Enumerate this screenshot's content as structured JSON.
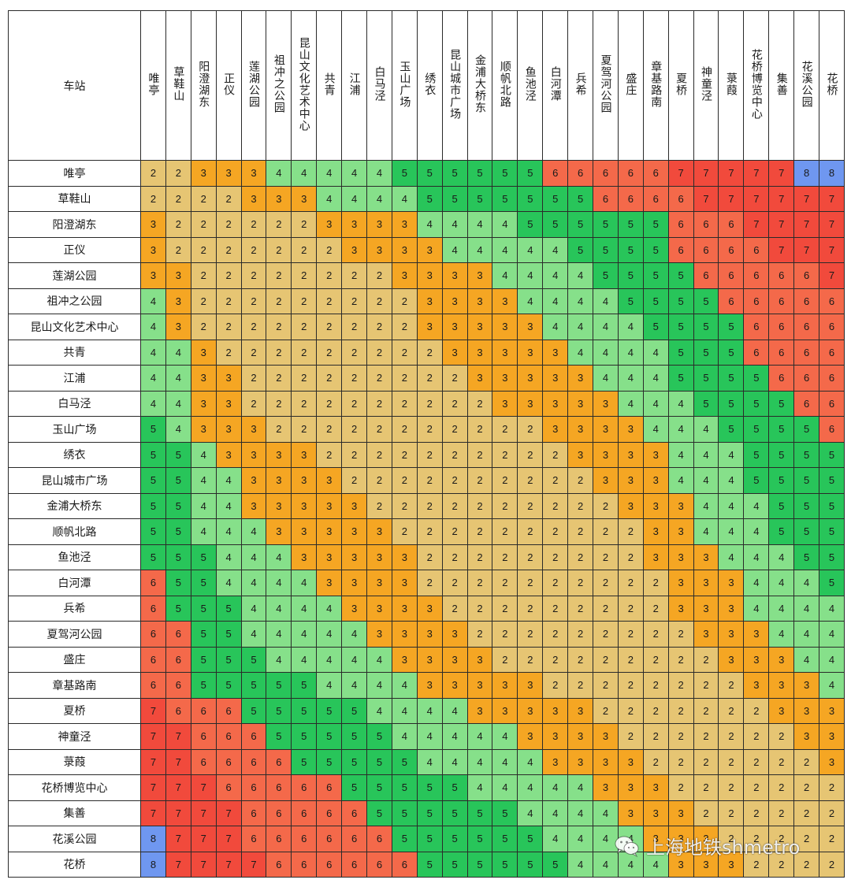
{
  "corner_label": "车站",
  "stations": [
    "唯亭",
    "草鞋山",
    "阳澄湖东",
    "正仪",
    "莲湖公园",
    "祖冲之公园",
    "昆山文化艺术中心",
    "共青",
    "江浦",
    "白马泾",
    "玉山广场",
    "绣衣",
    "昆山城市广场",
    "金浦大桥东",
    "顺帆北路",
    "鱼池泾",
    "白河潭",
    "兵希",
    "夏驾河公园",
    "盛庄",
    "章基路南",
    "夏桥",
    "神童泾",
    "菉葭",
    "花桥博览中心",
    "集善",
    "花溪公园",
    "花桥"
  ],
  "colors": {
    "2": "#e6c573",
    "3": "#f5a623",
    "4": "#86e08a",
    "5": "#28c55a",
    "6": "#f4694a",
    "7": "#f14a3c",
    "8": "#6f97f0"
  },
  "fares": [
    [
      2,
      2,
      3,
      3,
      3,
      4,
      4,
      4,
      4,
      4,
      5,
      5,
      5,
      5,
      5,
      5,
      6,
      6,
      6,
      6,
      6,
      7,
      7,
      7,
      7,
      7,
      8,
      8
    ],
    [
      2,
      2,
      2,
      2,
      3,
      3,
      3,
      4,
      4,
      4,
      4,
      5,
      5,
      5,
      5,
      5,
      5,
      5,
      6,
      6,
      6,
      6,
      7,
      7,
      7,
      7,
      7,
      7
    ],
    [
      3,
      2,
      2,
      2,
      2,
      2,
      2,
      3,
      3,
      3,
      3,
      4,
      4,
      4,
      4,
      5,
      5,
      5,
      5,
      5,
      5,
      6,
      6,
      6,
      7,
      7,
      7,
      7
    ],
    [
      3,
      2,
      2,
      2,
      2,
      2,
      2,
      2,
      3,
      3,
      3,
      3,
      4,
      4,
      4,
      4,
      4,
      5,
      5,
      5,
      5,
      6,
      6,
      6,
      6,
      7,
      7,
      7
    ],
    [
      3,
      3,
      2,
      2,
      2,
      2,
      2,
      2,
      2,
      2,
      3,
      3,
      3,
      3,
      4,
      4,
      4,
      4,
      5,
      5,
      5,
      5,
      6,
      6,
      6,
      6,
      6,
      7
    ],
    [
      4,
      3,
      2,
      2,
      2,
      2,
      2,
      2,
      2,
      2,
      2,
      3,
      3,
      3,
      3,
      4,
      4,
      4,
      4,
      5,
      5,
      5,
      5,
      6,
      6,
      6,
      6,
      6
    ],
    [
      4,
      3,
      2,
      2,
      2,
      2,
      2,
      2,
      2,
      2,
      2,
      3,
      3,
      3,
      3,
      3,
      4,
      4,
      4,
      4,
      5,
      5,
      5,
      5,
      6,
      6,
      6,
      6
    ],
    [
      4,
      4,
      3,
      2,
      2,
      2,
      2,
      2,
      2,
      2,
      2,
      2,
      3,
      3,
      3,
      3,
      3,
      4,
      4,
      4,
      4,
      5,
      5,
      5,
      6,
      6,
      6,
      6
    ],
    [
      4,
      4,
      3,
      3,
      2,
      2,
      2,
      2,
      2,
      2,
      2,
      2,
      2,
      3,
      3,
      3,
      3,
      3,
      4,
      4,
      4,
      5,
      5,
      5,
      5,
      6,
      6,
      6
    ],
    [
      4,
      4,
      3,
      3,
      2,
      2,
      2,
      2,
      2,
      2,
      2,
      2,
      2,
      2,
      3,
      3,
      3,
      3,
      3,
      4,
      4,
      4,
      5,
      5,
      5,
      5,
      6,
      6
    ],
    [
      5,
      4,
      3,
      3,
      3,
      2,
      2,
      2,
      2,
      2,
      2,
      2,
      2,
      2,
      2,
      2,
      3,
      3,
      3,
      3,
      4,
      4,
      4,
      5,
      5,
      5,
      5,
      6
    ],
    [
      5,
      5,
      4,
      3,
      3,
      3,
      3,
      2,
      2,
      2,
      2,
      2,
      2,
      2,
      2,
      2,
      2,
      3,
      3,
      3,
      3,
      4,
      4,
      4,
      5,
      5,
      5,
      5
    ],
    [
      5,
      5,
      4,
      4,
      3,
      3,
      3,
      3,
      2,
      2,
      2,
      2,
      2,
      2,
      2,
      2,
      2,
      2,
      3,
      3,
      3,
      4,
      4,
      4,
      5,
      5,
      5,
      5
    ],
    [
      5,
      5,
      4,
      4,
      3,
      3,
      3,
      3,
      3,
      2,
      2,
      2,
      2,
      2,
      2,
      2,
      2,
      2,
      2,
      3,
      3,
      3,
      4,
      4,
      4,
      5,
      5,
      5
    ],
    [
      5,
      5,
      4,
      4,
      4,
      3,
      3,
      3,
      3,
      3,
      2,
      2,
      2,
      2,
      2,
      2,
      2,
      2,
      2,
      2,
      3,
      3,
      4,
      4,
      4,
      5,
      5,
      5
    ],
    [
      5,
      5,
      5,
      4,
      4,
      4,
      3,
      3,
      3,
      3,
      3,
      2,
      2,
      2,
      2,
      2,
      2,
      2,
      2,
      2,
      3,
      3,
      3,
      4,
      4,
      4,
      5,
      5
    ],
    [
      6,
      5,
      5,
      4,
      4,
      4,
      4,
      3,
      3,
      3,
      3,
      2,
      2,
      2,
      2,
      2,
      2,
      2,
      2,
      2,
      2,
      3,
      3,
      3,
      4,
      4,
      4,
      5
    ],
    [
      6,
      5,
      5,
      5,
      4,
      4,
      4,
      4,
      3,
      3,
      3,
      3,
      2,
      2,
      2,
      2,
      2,
      2,
      2,
      2,
      2,
      3,
      3,
      3,
      4,
      4,
      4,
      4
    ],
    [
      6,
      6,
      5,
      5,
      4,
      4,
      4,
      4,
      4,
      3,
      3,
      3,
      3,
      2,
      2,
      2,
      2,
      2,
      2,
      2,
      2,
      2,
      3,
      3,
      3,
      4,
      4,
      4
    ],
    [
      6,
      6,
      5,
      5,
      5,
      4,
      4,
      4,
      4,
      4,
      3,
      3,
      3,
      3,
      2,
      2,
      2,
      2,
      2,
      2,
      2,
      2,
      2,
      3,
      3,
      3,
      4,
      4
    ],
    [
      6,
      6,
      5,
      5,
      5,
      5,
      5,
      4,
      4,
      4,
      4,
      3,
      3,
      3,
      3,
      3,
      2,
      2,
      2,
      2,
      2,
      2,
      2,
      2,
      3,
      3,
      3,
      4
    ],
    [
      7,
      6,
      6,
      6,
      5,
      5,
      5,
      5,
      5,
      4,
      4,
      4,
      4,
      3,
      3,
      3,
      3,
      3,
      2,
      2,
      2,
      2,
      2,
      2,
      2,
      3,
      3,
      3
    ],
    [
      7,
      7,
      6,
      6,
      6,
      5,
      5,
      5,
      5,
      5,
      4,
      4,
      4,
      4,
      4,
      3,
      3,
      3,
      3,
      2,
      2,
      2,
      2,
      2,
      2,
      2,
      3,
      3
    ],
    [
      7,
      7,
      6,
      6,
      6,
      6,
      5,
      5,
      5,
      5,
      5,
      4,
      4,
      4,
      4,
      4,
      3,
      3,
      3,
      3,
      2,
      2,
      2,
      2,
      2,
      2,
      2,
      3
    ],
    [
      7,
      7,
      7,
      6,
      6,
      6,
      6,
      6,
      5,
      5,
      5,
      5,
      5,
      4,
      4,
      4,
      4,
      4,
      3,
      3,
      3,
      2,
      2,
      2,
      2,
      2,
      2,
      2
    ],
    [
      7,
      7,
      7,
      7,
      6,
      6,
      6,
      6,
      6,
      5,
      5,
      5,
      5,
      5,
      5,
      4,
      4,
      4,
      4,
      3,
      3,
      3,
      2,
      2,
      2,
      2,
      2,
      2
    ],
    [
      8,
      7,
      7,
      7,
      6,
      6,
      6,
      6,
      6,
      6,
      5,
      5,
      5,
      5,
      5,
      5,
      4,
      4,
      4,
      4,
      3,
      3,
      3,
      2,
      2,
      2,
      2,
      2
    ],
    [
      8,
      7,
      7,
      7,
      7,
      6,
      6,
      6,
      6,
      6,
      6,
      5,
      5,
      5,
      5,
      5,
      5,
      4,
      4,
      4,
      4,
      3,
      3,
      3,
      2,
      2,
      2,
      2
    ]
  ],
  "watermark": {
    "text": "上海地铁shmetro",
    "icon": "wechat-icon"
  }
}
